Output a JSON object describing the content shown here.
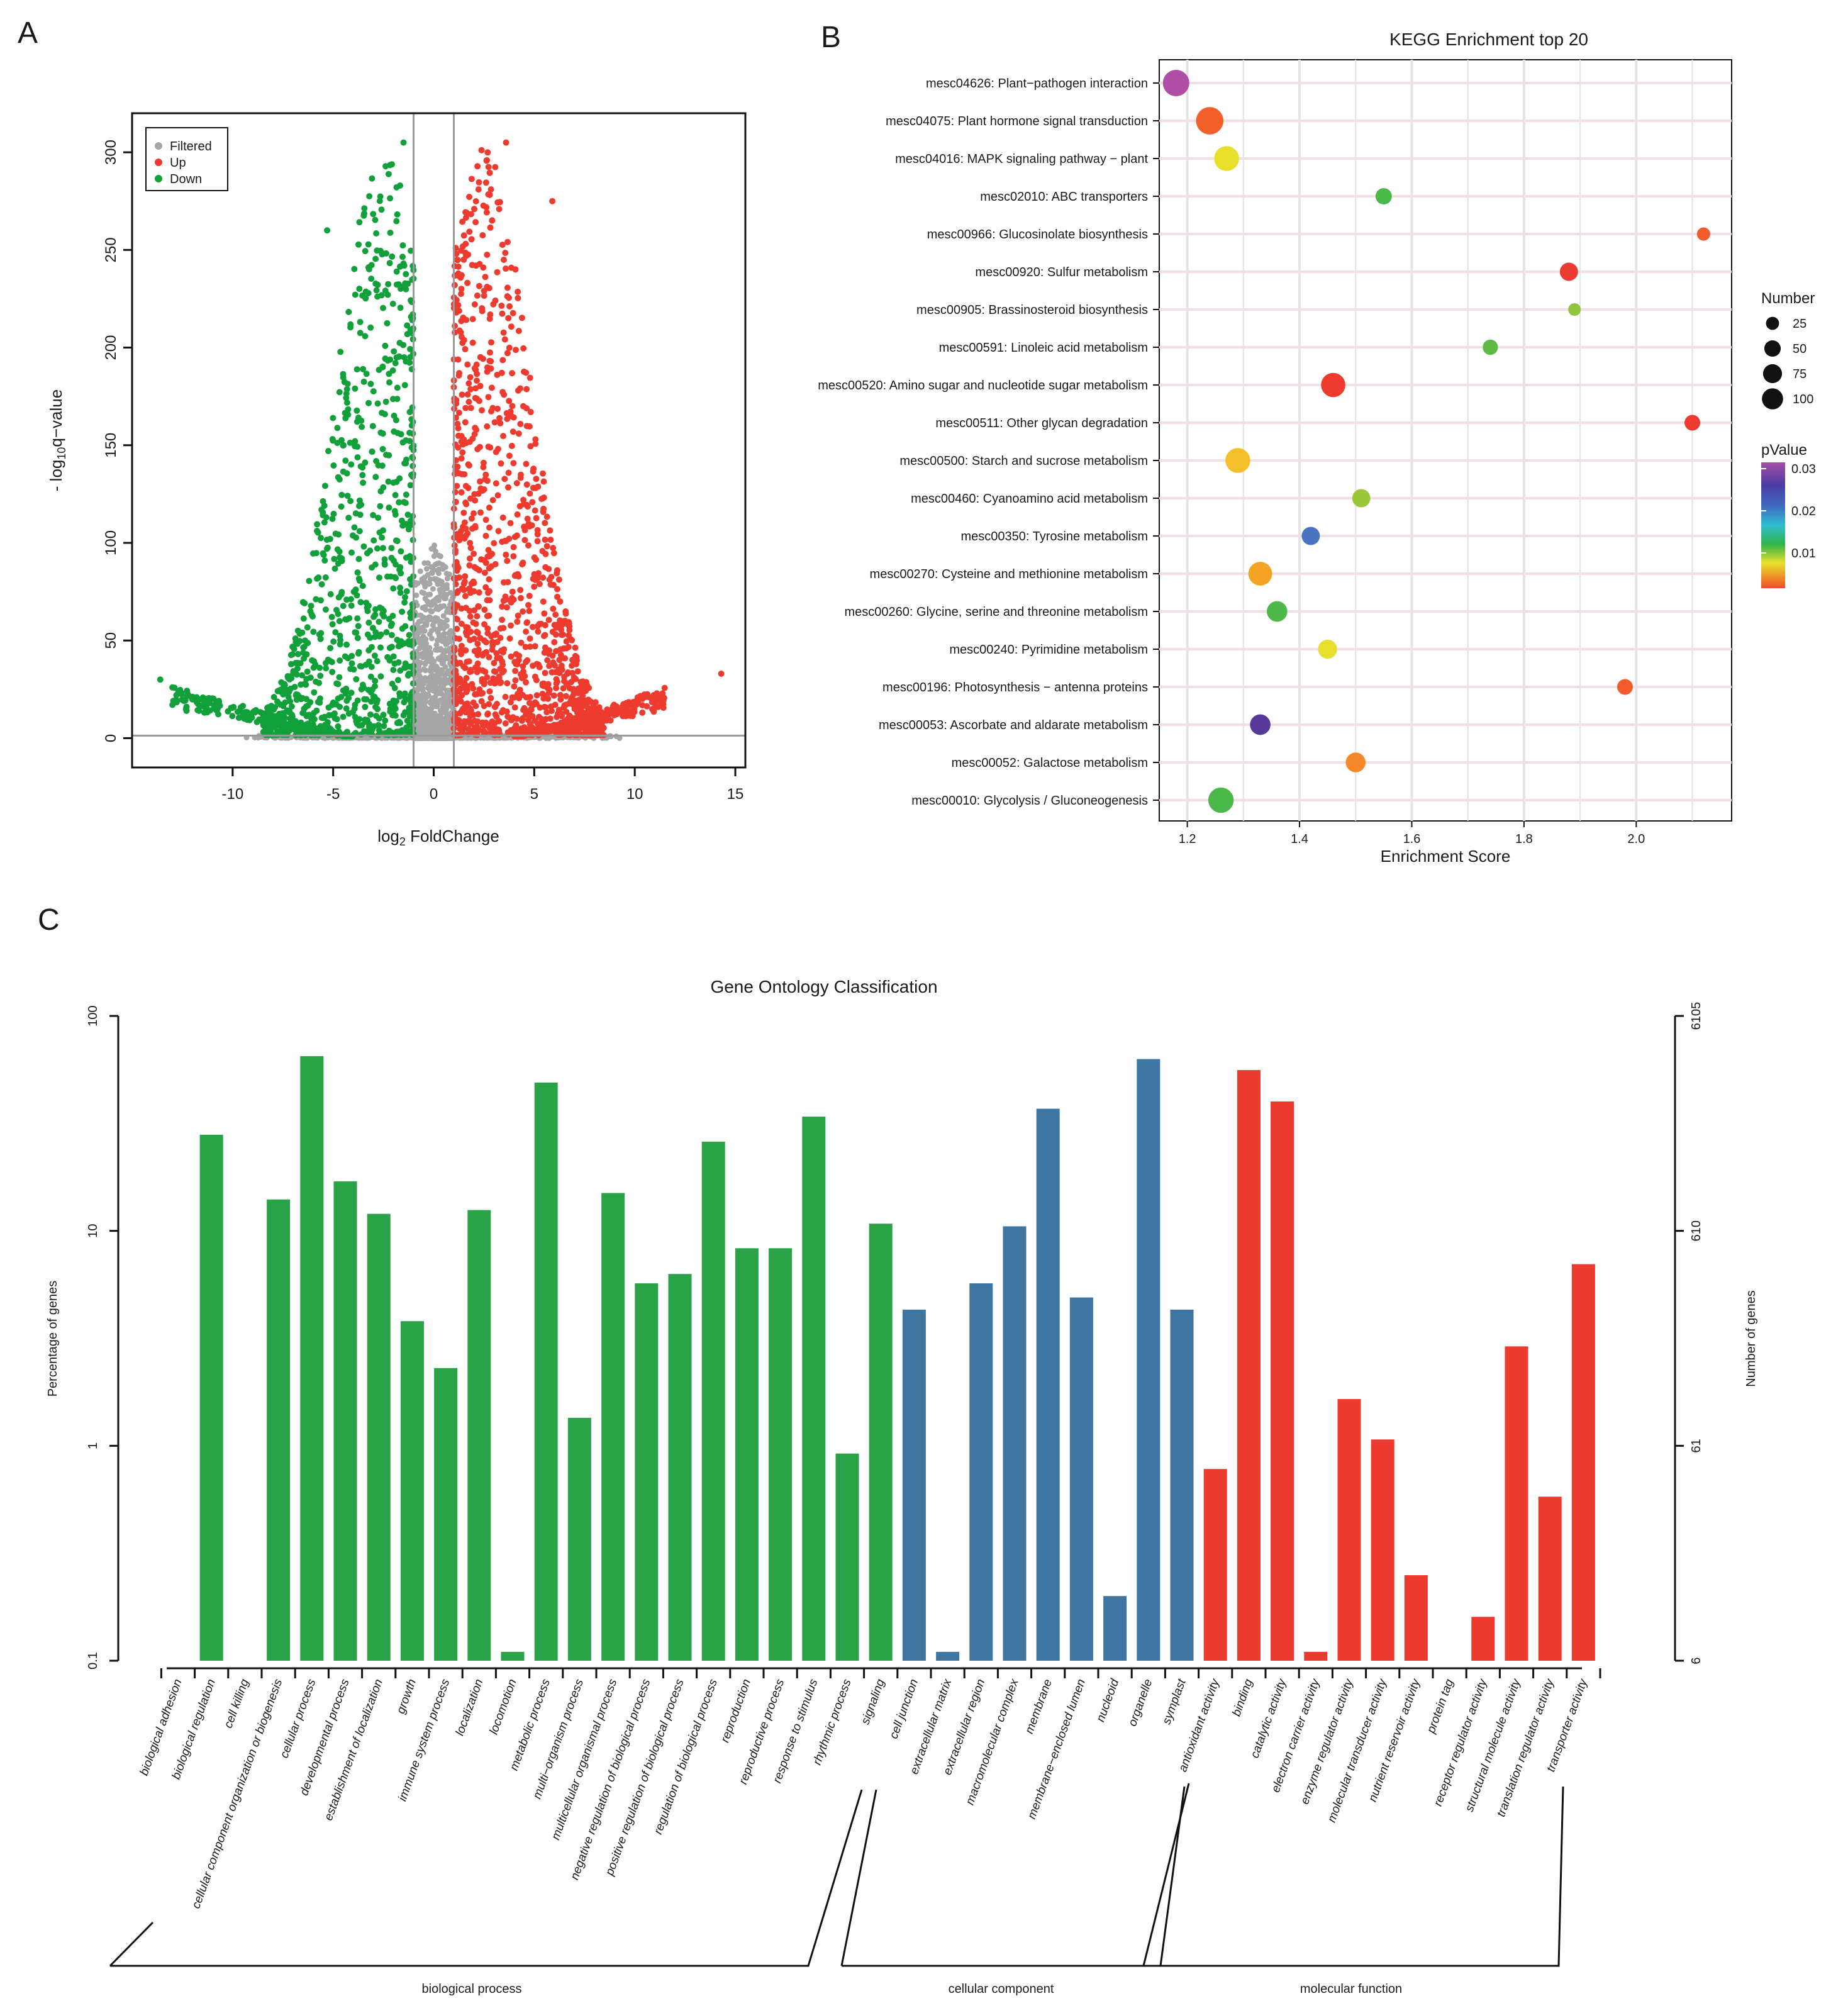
{
  "panels": {
    "a": "A",
    "b": "B",
    "c": "C"
  },
  "colors": {
    "filtered": "#a6a6a6",
    "up": "#ee3b2f",
    "down": "#11a03a",
    "bp": "#2aa247",
    "cc": "#3f76a1",
    "mf": "#ed3a2e"
  },
  "chart_data": [
    {
      "type": "scatter",
      "name": "volcano",
      "xlabel_main": "log",
      "xlabel_sub": "2",
      "xlabel_rest": " FoldChange",
      "ylabel_pre": "- log",
      "ylabel_sub": "10",
      "ylabel_post": "q−value",
      "xlim": [
        -15,
        15.5
      ],
      "ylim": [
        -15,
        320
      ],
      "xticks": [
        -10,
        -5,
        0,
        5,
        10,
        15
      ],
      "yticks": [
        0,
        50,
        100,
        150,
        200,
        250,
        300
      ],
      "thresholds": {
        "x": [
          -1,
          1
        ],
        "y": 1.3
      },
      "legend": {
        "placement": "top-left",
        "entries": [
          "Filtered",
          "Up",
          "Down"
        ]
      },
      "highlight_points": [
        {
          "x": 14.3,
          "y": 33,
          "group": "Up"
        },
        {
          "x": -13.6,
          "y": 30,
          "group": "Down"
        },
        {
          "x": -5.3,
          "y": 260,
          "group": "Down"
        },
        {
          "x": 5.9,
          "y": 275,
          "group": "Up"
        },
        {
          "x": 3.6,
          "y": 305,
          "group": "Up"
        },
        {
          "x": -1.5,
          "y": 305,
          "group": "Down"
        }
      ]
    },
    {
      "type": "scatter",
      "name": "kegg",
      "title": "KEGG Enrichment top 20",
      "xlabel": "Enrichment Score",
      "xlim": [
        1.15,
        2.17
      ],
      "xticks": [
        "1.2",
        "1.4",
        "1.6",
        "1.8",
        "2.0"
      ],
      "size_legend_title": "Number",
      "size_legend": [
        25,
        50,
        75,
        100
      ],
      "color_legend_title": "pValue",
      "color_legend_ticks": [
        "0.03",
        "0.02",
        "0.01"
      ],
      "pathways": [
        {
          "label": "mesc04626: Plant−pathogen interaction",
          "score": 1.18,
          "number": 100,
          "color": "#b04ea6"
        },
        {
          "label": "mesc04075: Plant hormone signal transduction",
          "score": 1.24,
          "number": 110,
          "color": "#f2602a"
        },
        {
          "label": "mesc04016: MAPK signaling pathway − plant",
          "score": 1.27,
          "number": 85,
          "color": "#e8e02c"
        },
        {
          "label": "mesc02010: ABC transporters",
          "score": 1.55,
          "number": 25,
          "color": "#4cb84a"
        },
        {
          "label": "mesc00966: Glucosinolate biosynthesis",
          "score": 2.12,
          "number": 12,
          "color": "#f45b2b"
        },
        {
          "label": "mesc00920: Sulfur metabolism",
          "score": 1.88,
          "number": 35,
          "color": "#ee3b2f"
        },
        {
          "label": "mesc00905: Brassinosteroid biosynthesis",
          "score": 1.89,
          "number": 10,
          "color": "#8fc43d"
        },
        {
          "label": "mesc00591: Linoleic acid metabolism",
          "score": 1.74,
          "number": 20,
          "color": "#5db844"
        },
        {
          "label": "mesc00520: Amino sugar and nucleotide sugar metabolism",
          "score": 1.46,
          "number": 80,
          "color": "#ee3b2f"
        },
        {
          "label": "mesc00511: Other glycan degradation",
          "score": 2.1,
          "number": 22,
          "color": "#ee3b2f"
        },
        {
          "label": "mesc00500: Starch and sucrose metabolism",
          "score": 1.29,
          "number": 85,
          "color": "#f5c02a"
        },
        {
          "label": "mesc00460: Cyanoamino acid metabolism",
          "score": 1.51,
          "number": 35,
          "color": "#9ac83a"
        },
        {
          "label": "mesc00350: Tyrosine metabolism",
          "score": 1.42,
          "number": 35,
          "color": "#4a73c2"
        },
        {
          "label": "mesc00270: Cysteine and methionine metabolism",
          "score": 1.33,
          "number": 75,
          "color": "#f5a323"
        },
        {
          "label": "mesc00260: Glycine, serine and threonine metabolism",
          "score": 1.36,
          "number": 50,
          "color": "#4cb84a"
        },
        {
          "label": "mesc00240: Pyrimidine metabolism",
          "score": 1.45,
          "number": 40,
          "color": "#e8e02c"
        },
        {
          "label": "mesc00196: Photosynthesis − antenna proteins",
          "score": 1.98,
          "number": 22,
          "color": "#f45b2b"
        },
        {
          "label": "mesc00053: Ascorbate and aldarate metabolism",
          "score": 1.33,
          "number": 50,
          "color": "#57399a"
        },
        {
          "label": "mesc00052: Galactose metabolism",
          "score": 1.5,
          "number": 45,
          "color": "#f5892a"
        },
        {
          "label": "mesc00010: Glycolysis / Gluconeogenesis",
          "score": 1.26,
          "number": 90,
          "color": "#4cb84a"
        }
      ]
    },
    {
      "type": "bar",
      "name": "go",
      "title": "Gene Ontology Classification",
      "ylabel_left": "Percentage of genes",
      "ylabel_right": "Number of genes",
      "yscale": "log",
      "ylim": [
        0.1,
        100
      ],
      "yticks_left": [
        "0.1",
        "1",
        "10",
        "100"
      ],
      "yticks_right": [
        "6",
        "61",
        "610",
        "6105"
      ],
      "groups": [
        {
          "name": "biological process",
          "color": "#2aa247",
          "categories": [
            {
              "label": "biological adhesion",
              "value": 0.1
            },
            {
              "label": "biological regulation",
              "value": 28
            },
            {
              "label": "cell killing",
              "value": 0.1
            },
            {
              "label": "cellular component organization or biogenesis",
              "value": 14
            },
            {
              "label": "cellular process",
              "value": 65
            },
            {
              "label": "developmental process",
              "value": 17
            },
            {
              "label": "establishment of localization",
              "value": 12
            },
            {
              "label": "growth",
              "value": 3.8
            },
            {
              "label": "immune system process",
              "value": 2.3
            },
            {
              "label": "localization",
              "value": 12.5
            },
            {
              "label": "locomotion",
              "value": 0.11
            },
            {
              "label": "metabolic process",
              "value": 49
            },
            {
              "label": "multi−organism process",
              "value": 1.35
            },
            {
              "label": "multicellular organismal process",
              "value": 15
            },
            {
              "label": "negative regulation of biological process",
              "value": 5.7
            },
            {
              "label": "positive regulation of biological process",
              "value": 6.3
            },
            {
              "label": "regulation of biological process",
              "value": 26
            },
            {
              "label": "reproduction",
              "value": 8.3
            },
            {
              "label": "reproductive process",
              "value": 8.3
            },
            {
              "label": "response to stimulus",
              "value": 34
            },
            {
              "label": "rhythmic process",
              "value": 0.92
            },
            {
              "label": "signaling",
              "value": 10.8
            }
          ]
        },
        {
          "name": "cellular component",
          "color": "#3f76a1",
          "categories": [
            {
              "label": "cell junction",
              "value": 4.3
            },
            {
              "label": "extracellular matrix",
              "value": 0.11
            },
            {
              "label": "extracellular region",
              "value": 5.7
            },
            {
              "label": "macromolecular complex",
              "value": 10.5
            },
            {
              "label": "membrane",
              "value": 37
            },
            {
              "label": "membrane−enclosed lumen",
              "value": 4.9
            },
            {
              "label": "nucleoid",
              "value": 0.2
            },
            {
              "label": "organelle",
              "value": 63
            },
            {
              "label": "symplast",
              "value": 4.3
            }
          ]
        },
        {
          "name": "molecular function",
          "color": "#ed3a2e",
          "categories": [
            {
              "label": "antioxidant activity",
              "value": 0.78
            },
            {
              "label": "binding",
              "value": 56
            },
            {
              "label": "catalytic activity",
              "value": 40
            },
            {
              "label": "electron carrier activity",
              "value": 0.11
            },
            {
              "label": "enzyme regulator activity",
              "value": 1.65
            },
            {
              "label": "molecular transducer activity",
              "value": 1.07
            },
            {
              "label": "nutrient reservoir activity",
              "value": 0.25
            },
            {
              "label": "protein tag",
              "value": 0.1
            },
            {
              "label": "receptor regulator activity",
              "value": 0.16
            },
            {
              "label": "structural molecule activity",
              "value": 2.9
            },
            {
              "label": "translation regulator activity",
              "value": 0.58
            },
            {
              "label": "transporter activity",
              "value": 7
            }
          ]
        }
      ]
    }
  ]
}
